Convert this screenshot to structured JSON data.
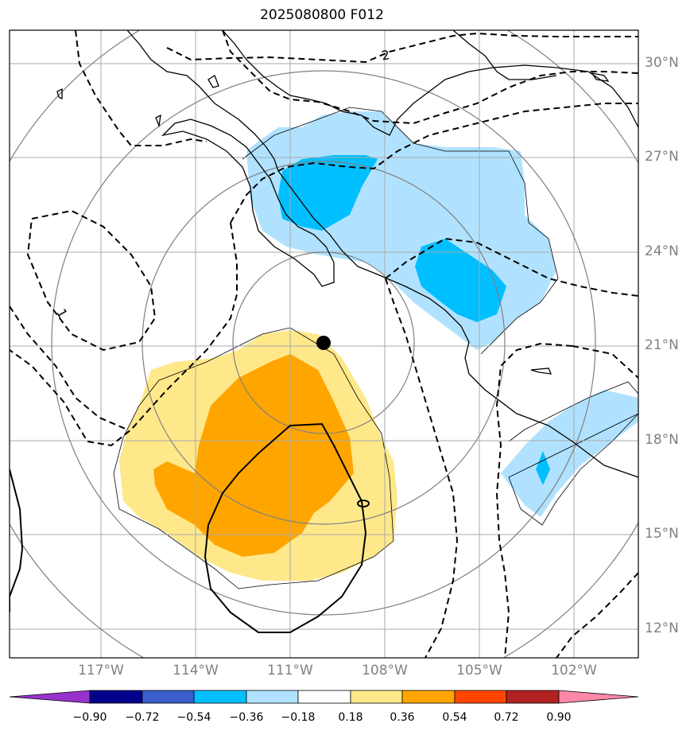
{
  "title": "2025080800 F012",
  "latitude_labels": [
    "30°N",
    "27°N",
    "24°N",
    "21°N",
    "18°N",
    "15°N",
    "12°N"
  ],
  "longitude_labels": [
    "117°W",
    "114°W",
    "111°W",
    "108°W",
    "105°W",
    "102°W"
  ],
  "contour_labels": [
    "2",
    "1"
  ],
  "colorbar": {
    "ticks": [
      "−0.90",
      "−0.72",
      "−0.54",
      "−0.36",
      "−0.18",
      "0.18",
      "0.36",
      "0.54",
      "0.72",
      "0.90"
    ],
    "colors": [
      "#9932cc",
      "#00008b",
      "#3a5fcd",
      "#00bfff",
      "#b0e2ff",
      "#ffffff",
      "#ffe88a",
      "#ffa500",
      "#ff4500",
      "#b22222",
      "#ff88aa"
    ]
  },
  "colors": {
    "light_blue": "#b0e2ff",
    "deep_sky_blue": "#00bfff",
    "light_yellow": "#ffe88a",
    "orange": "#ffa500",
    "grid": "#a9a9a9",
    "range_rings": "#808080"
  },
  "marker": "storm-center"
}
